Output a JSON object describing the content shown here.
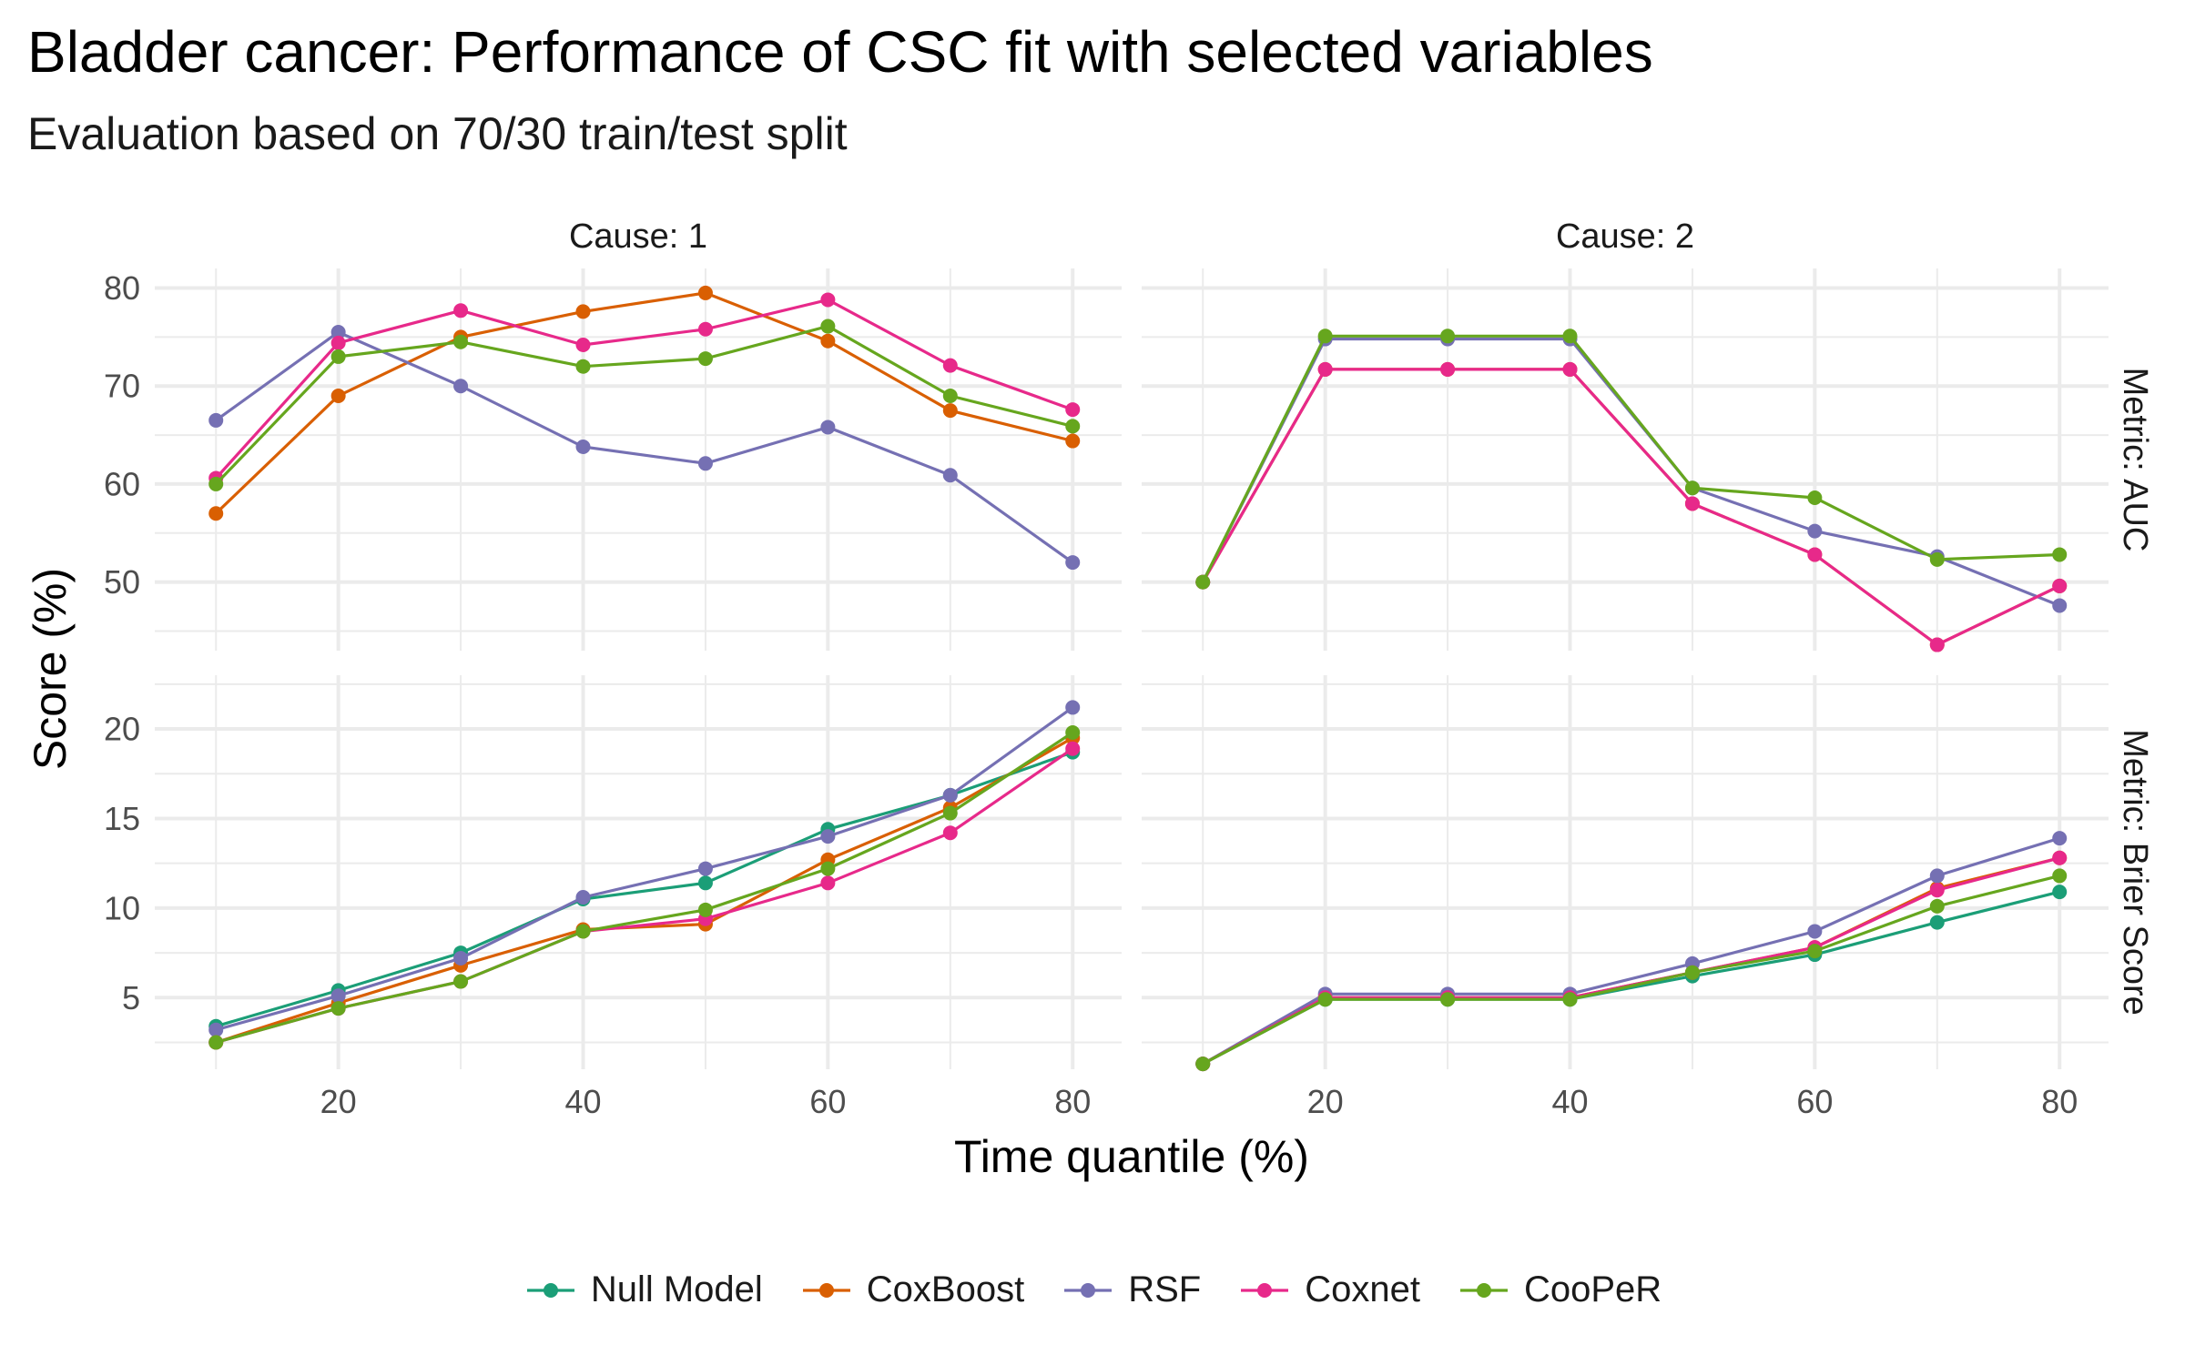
{
  "chart_data": {
    "type": "line",
    "title": "Bladder cancer: Performance of CSC fit with selected variables",
    "subtitle": "Evaluation based on 70/30 train/test split",
    "xlabel": "Time quantile (%)",
    "ylabel": "Score (%)",
    "x": [
      10,
      20,
      30,
      40,
      50,
      60,
      70,
      80
    ],
    "x_ticks": [
      20,
      40,
      60,
      80
    ],
    "columns": [
      "Cause: 1",
      "Cause: 2"
    ],
    "rows": [
      "Metric: AUC",
      "Metric: Brier Score"
    ],
    "grid": true,
    "legend_position": "bottom",
    "series_meta": [
      {
        "name": "Null Model",
        "color": "#1b9e77"
      },
      {
        "name": "CoxBoost",
        "color": "#d95f02"
      },
      {
        "name": "RSF",
        "color": "#7570b3"
      },
      {
        "name": "Coxnet",
        "color": "#e7298a"
      },
      {
        "name": "CooPeR",
        "color": "#66a61e"
      }
    ],
    "panels": [
      {
        "column": "Cause: 1",
        "row": "Metric: AUC",
        "ylim": [
          43,
          82
        ],
        "y_ticks": [
          50,
          60,
          70,
          80
        ],
        "series": [
          {
            "name": "CoxBoost",
            "values": [
              57,
              69,
              75,
              77.6,
              79.5,
              74.6,
              67.5,
              64.4
            ]
          },
          {
            "name": "RSF",
            "values": [
              66.5,
              75.5,
              70,
              63.8,
              62.1,
              65.8,
              60.9,
              52
            ]
          },
          {
            "name": "Coxnet",
            "values": [
              60.6,
              74.4,
              77.7,
              74.2,
              75.8,
              78.8,
              72.1,
              67.6
            ]
          },
          {
            "name": "CooPeR",
            "values": [
              60,
              73,
              74.5,
              72,
              72.8,
              76.1,
              69,
              65.9
            ]
          }
        ]
      },
      {
        "column": "Cause: 2",
        "row": "Metric: AUC",
        "ylim": [
          43,
          82
        ],
        "y_ticks": [
          50,
          60,
          70,
          80
        ],
        "series": [
          {
            "name": "CoxBoost",
            "values": [
              50,
              71.7,
              71.7,
              71.7,
              58,
              52.8,
              43.6,
              49.6
            ]
          },
          {
            "name": "RSF",
            "values": [
              50,
              74.8,
              74.8,
              74.8,
              59.6,
              55.2,
              52.6,
              47.6
            ]
          },
          {
            "name": "Coxnet",
            "values": [
              50,
              71.7,
              71.7,
              71.7,
              58,
              52.8,
              43.6,
              49.6
            ]
          },
          {
            "name": "CooPeR",
            "values": [
              50,
              75.1,
              75.1,
              75.1,
              59.6,
              58.6,
              52.3,
              52.8
            ]
          }
        ]
      },
      {
        "column": "Cause: 1",
        "row": "Metric: Brier Score",
        "ylim": [
          1,
          23
        ],
        "y_ticks": [
          5,
          10,
          15,
          20
        ],
        "series": [
          {
            "name": "Null Model",
            "values": [
              3.4,
              5.4,
              7.5,
              10.5,
              11.4,
              14.4,
              16.3,
              18.7
            ]
          },
          {
            "name": "CoxBoost",
            "values": [
              2.5,
              4.7,
              6.8,
              8.8,
              9.1,
              12.7,
              15.6,
              19.5
            ]
          },
          {
            "name": "RSF",
            "values": [
              3.2,
              5.1,
              7.2,
              10.6,
              12.2,
              14,
              16.3,
              21.2
            ]
          },
          {
            "name": "Coxnet",
            "values": [
              2.5,
              4.4,
              5.9,
              8.7,
              9.4,
              11.4,
              14.2,
              18.9
            ]
          },
          {
            "name": "CooPeR",
            "values": [
              2.5,
              4.4,
              5.9,
              8.7,
              9.9,
              12.2,
              15.3,
              19.8
            ]
          }
        ]
      },
      {
        "column": "Cause: 2",
        "row": "Metric: Brier Score",
        "ylim": [
          1,
          23
        ],
        "y_ticks": [
          5,
          10,
          15,
          20
        ],
        "series": [
          {
            "name": "Null Model",
            "values": [
              1.3,
              4.9,
              4.9,
              4.9,
              6.2,
              7.4,
              9.2,
              10.9
            ]
          },
          {
            "name": "CoxBoost",
            "values": [
              1.3,
              5,
              5,
              5,
              6.4,
              7.8,
              11.1,
              12.8
            ]
          },
          {
            "name": "RSF",
            "values": [
              1.3,
              5.2,
              5.2,
              5.2,
              6.9,
              8.7,
              11.8,
              13.9
            ]
          },
          {
            "name": "Coxnet",
            "values": [
              1.3,
              5,
              5,
              5,
              6.4,
              7.8,
              11,
              12.8
            ]
          },
          {
            "name": "CooPeR",
            "values": [
              1.3,
              4.9,
              4.9,
              4.9,
              6.4,
              7.6,
              10.1,
              11.8
            ]
          }
        ]
      }
    ]
  }
}
